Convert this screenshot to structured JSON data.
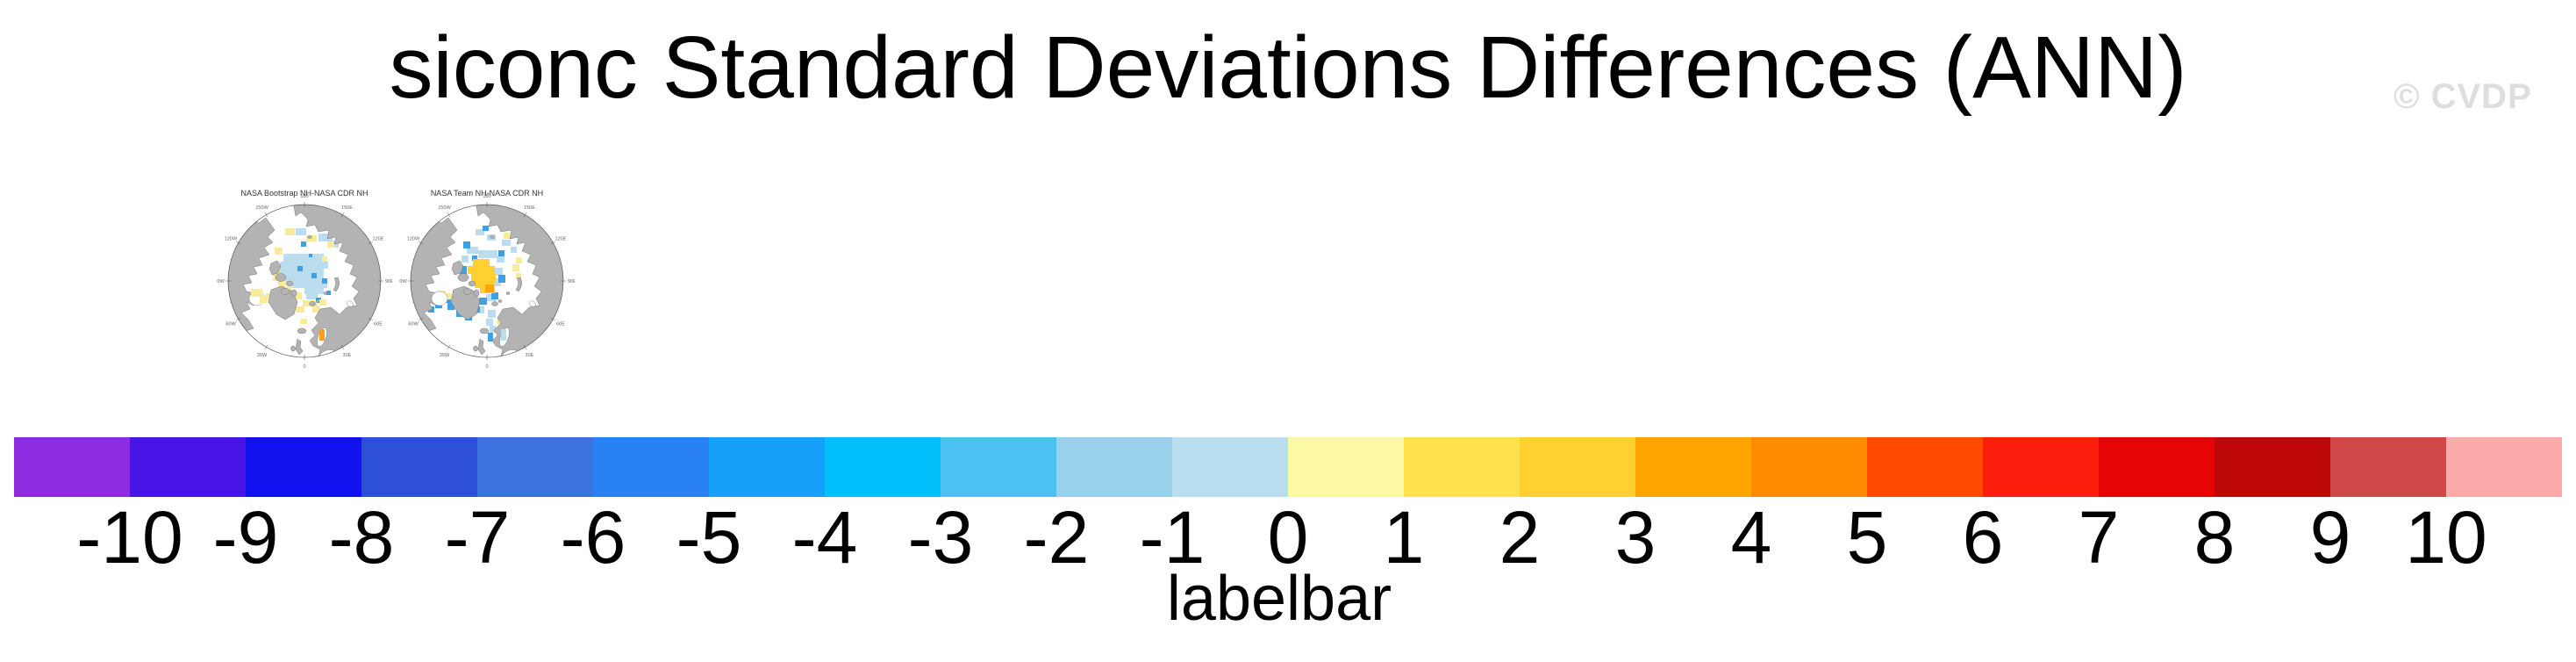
{
  "watermark": "© CVDP",
  "map_palette": {
    "paleBlue": "#BCDCF0",
    "midBlue": "#41A0E4",
    "gold": "#FFD02F",
    "amber": "#FFA60A",
    "yellow": "#F8EC9A",
    "orange": "#FB9E18"
  },
  "land_color": "#B3B3B3",
  "coast_color": "#767676",
  "chart_data": {
    "type": "heatmap",
    "title": "siconc Standard Deviations Differences (ANN)",
    "variable": "siconc",
    "statistic": "Standard Deviations Differences",
    "season": "ANN",
    "panels": [
      {
        "title": "NASA Bootstrap NH-NASA CDR NH",
        "projection": "polar-stereographic-nh",
        "lon_labels": [
          "180",
          "150E",
          "120E",
          "90E",
          "60E",
          "30E",
          "0",
          "30W",
          "60W",
          "90W",
          "120W",
          "150W"
        ],
        "patches": {
          "under": [
            {
              "color": "paleBlue",
              "cells": [
                [
                  -10,
                  -60,
                  12,
                  8
                ],
                [
                  16,
                  -54,
                  16,
                  9
                ],
                [
                  30,
                  -46,
                  9,
                  8
                ],
                [
                  -24,
                  -31,
                  46,
                  9
                ],
                [
                  -28,
                  -22,
                  55,
                  8
                ],
                [
                  -28,
                  -14,
                  50,
                  8
                ],
                [
                  -24,
                  -6,
                  46,
                  7
                ],
                [
                  -14,
                  1,
                  40,
                  7
                ],
                [
                  0,
                  8,
                  22,
                  7
                ],
                [
                  2,
                  15,
                  13,
                  6
                ]
              ]
            },
            {
              "color": "midBlue",
              "cells": [
                [
                  -4,
                  -45,
                  6,
                  6
                ],
                [
                  -8,
                  -17,
                  6,
                  6
                ],
                [
                  8,
                  -9,
                  6,
                  6
                ],
                [
                  20,
                  -3,
                  6,
                  6
                ],
                [
                  25,
                  11,
                  5,
                  5
                ],
                [
                  13,
                  19,
                  6,
                  6
                ],
                [
                  5,
                  -31,
                  4,
                  4
                ]
              ]
            },
            {
              "color": "yellow",
              "cells": [
                [
                  -22,
                  -60,
                  11,
                  8
                ],
                [
                  2,
                  -52,
                  12,
                  7
                ],
                [
                  -34,
                  -38,
                  9,
                  8
                ],
                [
                  33,
                  -59,
                  8,
                  7
                ],
                [
                  26,
                  -45,
                  8,
                  7
                ],
                [
                  -36,
                  -17,
                  8,
                  17
                ],
                [
                  -30,
                  -1,
                  8,
                  9
                ],
                [
                  -24,
                  7,
                  10,
                  8
                ],
                [
                  -44,
                  14,
                  9,
                  8
                ],
                [
                  -16,
                  13,
                  13,
                  8
                ],
                [
                  -2,
                  22,
                  17,
                  7
                ],
                [
                  -10,
                  29,
                  10,
                  7
                ],
                [
                  9,
                  29,
                  9,
                  7
                ],
                [
                  17,
                  21,
                  8,
                  7
                ],
                [
                  13,
                  39,
                  8,
                  8
                ],
                [
                  -5,
                  43,
                  8,
                  6
                ],
                [
                  20,
                  -28,
                  6,
                  6
                ]
              ]
            },
            {
              "color": "orange",
              "cells": [
                [
                  45,
                  -62,
                  6,
                  6
                ]
              ]
            }
          ],
          "over": [
            {
              "color": "yellow",
              "cells": [
                [
                  -61,
                  9,
                  13,
                  9
                ],
                [
                  -51,
                  17,
                  9,
                  8
                ]
              ]
            },
            {
              "color": "orange",
              "cells": [
                [
                  17,
                  55,
                  6,
                  13
                ]
              ]
            }
          ]
        }
      },
      {
        "title": "NASA Team NH-NASA CDR NH",
        "projection": "polar-stereographic-nh",
        "lon_labels": [
          "180",
          "150E",
          "120E",
          "90E",
          "60E",
          "30E",
          "0",
          "30W",
          "60W",
          "90W",
          "120W",
          "150W"
        ],
        "patches": {
          "under": [
            {
              "color": "paleBlue",
              "cells": [
                [
                  -13,
                  -59,
                  10,
                  7
                ],
                [
                  0,
                  -53,
                  10,
                  7
                ],
                [
                  17,
                  -47,
                  10,
                  7
                ],
                [
                  -23,
                  -39,
                  13,
                  8
                ],
                [
                  -10,
                  -35,
                  22,
                  9
                ],
                [
                  11,
                  -29,
                  9,
                  8
                ],
                [
                  -29,
                  -29,
                  8,
                  8
                ],
                [
                  9,
                  -15,
                  9,
                  9
                ],
                [
                  7,
                  -3,
                  9,
                  9
                ],
                [
                  -1,
                  15,
                  11,
                  8
                ],
                [
                  1,
                  33,
                  9,
                  9
                ],
                [
                  -1,
                  43,
                  8,
                  8
                ],
                [
                  3,
                  51,
                  7,
                  8
                ],
                [
                  -11,
                  29,
                  8,
                  8
                ],
                [
                  27,
                  -39,
                  7,
                  7
                ]
              ]
            },
            {
              "color": "midBlue",
              "cells": [
                [
                  -27,
                  -45,
                  8,
                  8
                ],
                [
                  -5,
                  -63,
                  7,
                  6
                ],
                [
                  -31,
                  -17,
                  8,
                  15
                ],
                [
                  13,
                  -7,
                  8,
                  9
                ],
                [
                  5,
                  13,
                  8,
                  8
                ],
                [
                  -9,
                  19,
                  9,
                  8
                ],
                [
                  13,
                  -35,
                  7,
                  7
                ],
                [
                  -39,
                  11,
                  8,
                  8
                ],
                [
                  -49,
                  17,
                  8,
                  8
                ],
                [
                  -59,
                  23,
                  8,
                  8
                ],
                [
                  -45,
                  25,
                  8,
                  8
                ],
                [
                  -35,
                  33,
                  8,
                  8
                ],
                [
                  -25,
                  37,
                  8,
                  8
                ],
                [
                  -15,
                  29,
                  7,
                  7
                ],
                [
                  -67,
                  29,
                  7,
                  7
                ],
                [
                  1,
                  59,
                  6,
                  10
                ],
                [
                  -17,
                  -29,
                  6,
                  6
                ]
              ]
            },
            {
              "color": "gold",
              "cells": [
                [
                  -16,
                  -25,
                  19,
                  8
                ],
                [
                  -22,
                  -17,
                  31,
                  9
                ],
                [
                  -18,
                  -8,
                  28,
                  9
                ],
                [
                  -14,
                  0,
                  22,
                  8
                ],
                [
                  -8,
                  7,
                  17,
                  7
                ]
              ]
            },
            {
              "color": "amber",
              "cells": [
                [
                  -2,
                  4,
                  10,
                  9
                ]
              ]
            },
            {
              "color": "yellow",
              "cells": [
                [
                  -57,
                  11,
                  10,
                  8
                ],
                [
                  -47,
                  14,
                  7,
                  7
                ],
                [
                  29,
                  -19,
                  8,
                  8
                ],
                [
                  33,
                  -27,
                  7,
                  7
                ],
                [
                  39,
                  -61,
                  7,
                  7
                ],
                [
                  19,
                  -55,
                  7,
                  7
                ],
                [
                  11,
                  43,
                  6,
                  6
                ],
                [
                  33,
                  -9,
                  6,
                  6
                ]
              ]
            }
          ],
          "over": [
            {
              "color": "paleBlue",
              "cells": [
                [
                  16,
                  55,
                  6,
                  13
                ]
              ]
            }
          ]
        }
      }
    ],
    "colorbar": {
      "label": "labelbar",
      "tick_labels": [
        -10,
        -9,
        -8,
        -7,
        -6,
        -5,
        -4,
        -3,
        -2,
        -1,
        0,
        1,
        2,
        3,
        4,
        5,
        6,
        7,
        8,
        9,
        10
      ],
      "colors": [
        "#8D2BE0",
        "#4714E6",
        "#1212F0",
        "#2E50D8",
        "#3C72DE",
        "#2A82F2",
        "#17A0FA",
        "#00BFFA",
        "#4DC1F2",
        "#98D1EA",
        "#B8DEF0",
        "#FBF8A6",
        "#FFE14F",
        "#FFD02F",
        "#FFA500",
        "#FF8C00",
        "#FF4A00",
        "#FB1E0C",
        "#E60404",
        "#BE0808",
        "#D04848",
        "#FBAAAA"
      ]
    }
  }
}
